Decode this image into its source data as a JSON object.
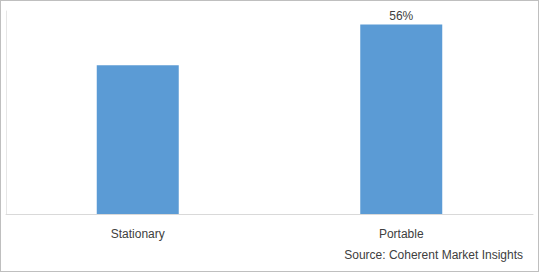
{
  "chart_data": {
    "type": "bar",
    "categories": [
      "Stationary",
      "Portable"
    ],
    "values": [
      44,
      56
    ],
    "value_labels": [
      null,
      "56%"
    ],
    "color": "#5b9bd5",
    "ylim": [
      0,
      60
    ],
    "grid": false,
    "tick_labels": "x",
    "annotation": "Source: Coherent Market Insights"
  }
}
